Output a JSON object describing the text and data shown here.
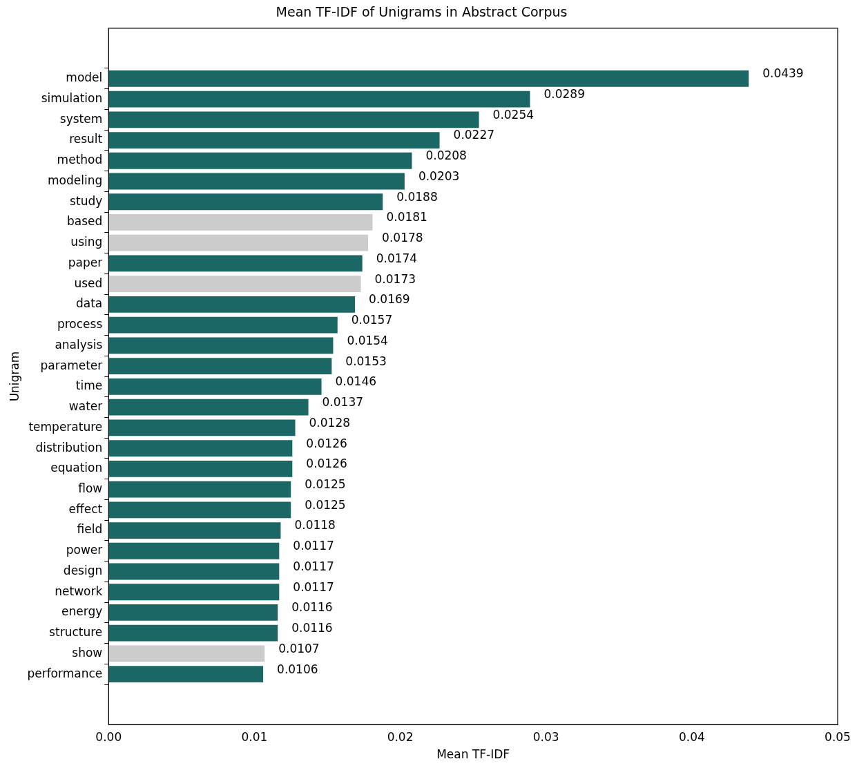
{
  "chart_data": {
    "type": "bar",
    "orientation": "horizontal",
    "title": "Mean TF-IDF of Unigrams in Abstract Corpus",
    "xlabel": "Mean TF-IDF",
    "ylabel": "Unigram",
    "categories": [
      "model",
      "simulation",
      "system",
      "result",
      "method",
      "modeling",
      "study",
      "based",
      "using",
      "paper",
      "used",
      "data",
      "process",
      "analysis",
      "parameter",
      "time",
      "water",
      "temperature",
      "distribution",
      "equation",
      "flow",
      "effect",
      "field",
      "power",
      "design",
      "network",
      "energy",
      "structure",
      "show",
      "performance"
    ],
    "values": [
      0.0439,
      0.0289,
      0.0254,
      0.0227,
      0.0208,
      0.0203,
      0.0188,
      0.0181,
      0.0178,
      0.0174,
      0.0173,
      0.0169,
      0.0157,
      0.0154,
      0.0153,
      0.0146,
      0.0137,
      0.0128,
      0.0126,
      0.0126,
      0.0125,
      0.0125,
      0.0118,
      0.0117,
      0.0117,
      0.0117,
      0.0116,
      0.0116,
      0.0107,
      0.0106
    ],
    "colors": [
      "#1b6766",
      "#1b6766",
      "#1b6766",
      "#1b6766",
      "#1b6766",
      "#1b6766",
      "#1b6766",
      "#cccccc",
      "#cccccc",
      "#1b6766",
      "#cccccc",
      "#1b6766",
      "#1b6766",
      "#1b6766",
      "#1b6766",
      "#1b6766",
      "#1b6766",
      "#1b6766",
      "#1b6766",
      "#1b6766",
      "#1b6766",
      "#1b6766",
      "#1b6766",
      "#1b6766",
      "#1b6766",
      "#1b6766",
      "#1b6766",
      "#1b6766",
      "#cccccc",
      "#1b6766"
    ],
    "xlim": [
      0,
      0.05
    ],
    "xticks": [
      {
        "value": 0,
        "label": "0.00"
      },
      0.01,
      0.02,
      0.03,
      0.04,
      0.05
    ],
    "data_labels": true,
    "grid": false,
    "legend": false
  }
}
